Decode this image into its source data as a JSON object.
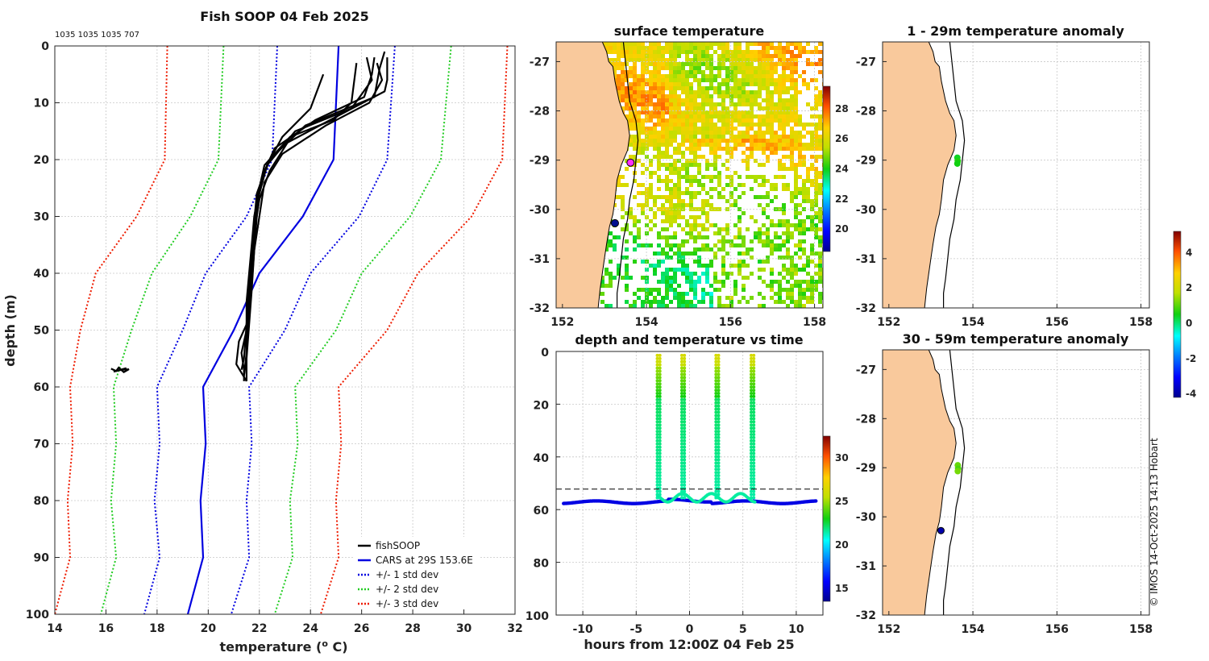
{
  "title": "Fish SOOP 04 Feb 2025",
  "counts_label": "1035 1035 1035 707",
  "copyright": "© IMOS 14-Oct-2025 14:13 Hobart",
  "chart_data": [
    {
      "id": "profile",
      "type": "line",
      "title": "Fish SOOP 04 Feb 2025",
      "xlabel": "temperature (",
      "xlabel_sup": "o",
      "xlabel_tail": " C)",
      "ylabel": "depth (m)",
      "xlim": [
        14,
        32
      ],
      "ylim": [
        0,
        100
      ],
      "y_reversed": true,
      "xticks": [
        14,
        16,
        18,
        20,
        22,
        24,
        26,
        28,
        30,
        32
      ],
      "yticks": [
        0,
        10,
        20,
        30,
        40,
        50,
        60,
        70,
        80,
        90,
        100
      ],
      "legend": [
        {
          "label": "fishSOOP",
          "color": "#000000",
          "style": "solid"
        },
        {
          "label": "CARS at 29S 153.6E",
          "color": "#0000e0",
          "style": "solid"
        },
        {
          "label": "+/- 1 std dev",
          "color": "#0000e0",
          "style": "dotted"
        },
        {
          "label": "+/- 2 std dev",
          "color": "#22cc22",
          "style": "dotted"
        },
        {
          "label": "+/- 3 std dev",
          "color": "#ee1c00",
          "style": "dotted"
        }
      ],
      "cars_depth": [
        0,
        20,
        30,
        40,
        50,
        60,
        70,
        80,
        90,
        100
      ],
      "cars_mean": [
        25.1,
        24.9,
        23.7,
        22.0,
        21.0,
        19.8,
        19.9,
        19.7,
        19.8,
        19.2
      ],
      "std_bands": [
        {
          "name": "-3",
          "color": "#ee1c00",
          "temps": [
            18.4,
            18.3,
            17.2,
            15.6,
            15.0,
            14.6,
            14.7,
            14.5,
            14.6,
            14.0
          ]
        },
        {
          "name": "-2",
          "color": "#22cc22",
          "temps": [
            20.6,
            20.4,
            19.3,
            17.8,
            17.0,
            16.3,
            16.4,
            16.2,
            16.4,
            15.8
          ]
        },
        {
          "name": "-1",
          "color": "#0000e0",
          "temps": [
            22.7,
            22.5,
            21.5,
            19.9,
            19.0,
            18.0,
            18.1,
            17.9,
            18.1,
            17.5
          ]
        },
        {
          "name": "+1",
          "color": "#0000e0",
          "temps": [
            27.3,
            27.0,
            25.9,
            24.0,
            23.0,
            21.6,
            21.7,
            21.5,
            21.6,
            20.9
          ]
        },
        {
          "name": "+2",
          "color": "#22cc22",
          "temps": [
            29.5,
            29.1,
            27.9,
            26.0,
            25.0,
            23.4,
            23.5,
            23.2,
            23.3,
            22.6
          ]
        },
        {
          "name": "+3",
          "color": "#ee1c00",
          "temps": [
            31.7,
            31.5,
            30.3,
            28.2,
            27.0,
            25.1,
            25.2,
            25.0,
            25.1,
            24.4
          ]
        }
      ],
      "fishsoop_profiles": [
        {
          "temp": [
            25.8,
            25.6,
            24.9,
            23.2,
            22.2,
            22.0,
            21.8,
            21.7,
            21.6,
            21.5,
            21.5,
            21.3,
            21.4,
            21.4
          ],
          "depth": [
            3,
            10,
            13,
            16,
            21,
            25,
            30,
            35,
            40,
            45,
            50,
            54,
            57,
            59
          ]
        },
        {
          "temp": [
            26.5,
            26.4,
            26.1,
            24.2,
            22.6,
            22.1,
            21.9,
            21.8,
            21.7,
            21.6,
            21.5,
            21.5,
            21.5
          ],
          "depth": [
            2,
            5,
            9,
            13,
            18,
            23,
            28,
            34,
            40,
            46,
            52,
            56,
            59
          ]
        },
        {
          "temp": [
            26.9,
            26.7,
            26.5,
            23.8,
            22.4,
            22.0,
            21.9,
            21.8,
            21.7,
            21.6,
            21.5,
            21.4
          ],
          "depth": [
            1,
            4,
            9,
            14,
            20,
            25,
            30,
            36,
            42,
            48,
            54,
            58
          ]
        },
        {
          "temp": [
            26.6,
            26.8,
            26.3,
            24.6,
            22.9,
            22.2,
            22.0,
            21.8,
            21.7,
            21.6,
            21.5,
            21.4
          ],
          "depth": [
            3,
            6,
            10,
            14,
            19,
            24,
            30,
            36,
            43,
            49,
            55,
            58
          ]
        },
        {
          "temp": [
            26.2,
            26.4,
            25.6,
            23.4,
            22.3,
            21.9,
            21.8,
            21.7,
            21.6,
            21.5,
            21.4,
            21.3
          ],
          "depth": [
            2,
            6,
            11,
            15,
            21,
            26,
            31,
            37,
            43,
            49,
            55,
            57
          ]
        },
        {
          "temp": [
            27.0,
            27.0,
            26.9,
            25.2,
            23.1,
            22.4,
            22.0,
            21.8,
            21.7,
            21.6,
            21.5
          ],
          "depth": [
            2,
            6,
            8,
            12,
            17,
            22,
            27,
            33,
            40,
            47,
            53
          ]
        },
        {
          "temp": [
            24.5,
            24.0,
            22.9,
            22.3,
            22.0,
            21.8,
            21.7,
            21.6,
            21.5,
            21.2,
            21.1,
            21.5
          ],
          "depth": [
            5,
            11,
            16,
            21,
            26,
            31,
            37,
            43,
            49,
            52,
            56,
            59
          ]
        }
      ],
      "outlier_cluster": {
        "temp": [
          16.2,
          16.4,
          16.5,
          16.7,
          16.9,
          16.6,
          16.3,
          16.8
        ],
        "depth": [
          56.8,
          57.2,
          56.6,
          57.4,
          56.9,
          57.0,
          57.3,
          56.7
        ]
      }
    },
    {
      "id": "sst_map",
      "type": "heatmap",
      "title": "surface temperature",
      "xlim": [
        151.85,
        158.2
      ],
      "ylim": [
        -32,
        -26.6
      ],
      "xticks": [
        152,
        154,
        156,
        158
      ],
      "yticks": [
        -27,
        -28,
        -29,
        -30,
        -31,
        -32
      ],
      "colorbar": {
        "min": 18.5,
        "max": 29.5,
        "ticks": [
          20,
          22,
          24,
          26,
          28
        ]
      },
      "markers": [
        {
          "lon": 153.62,
          "lat": -29.05,
          "color": "#ff30ff",
          "label": ""
        },
        {
          "lon": 153.25,
          "lat": -30.28,
          "color": "#001090",
          "label": ""
        }
      ]
    },
    {
      "id": "anomaly_1_29m",
      "type": "scatter",
      "title": "1 - 29m temperature anomaly",
      "xlim": [
        151.85,
        158.2
      ],
      "ylim": [
        -32,
        -26.6
      ],
      "xticks": [
        152,
        154,
        156,
        158
      ],
      "yticks": [
        -27,
        -28,
        -29,
        -30,
        -31,
        -32
      ],
      "points": [
        {
          "lon": 153.63,
          "lat": -28.95,
          "anomaly": 0.4
        },
        {
          "lon": 153.64,
          "lat": -29.02,
          "anomaly": 0.6
        },
        {
          "lon": 153.63,
          "lat": -29.07,
          "anomaly": 0.5
        }
      ]
    },
    {
      "id": "anomaly_30_59m",
      "type": "scatter",
      "title": "30 - 59m temperature anomaly",
      "xlim": [
        151.85,
        158.2
      ],
      "ylim": [
        -32,
        -26.6
      ],
      "xticks": [
        152,
        154,
        156,
        158
      ],
      "yticks": [
        -27,
        -28,
        -29,
        -30,
        -31,
        -32
      ],
      "points": [
        {
          "lon": 153.64,
          "lat": -28.95,
          "anomaly": 1.1
        },
        {
          "lon": 153.65,
          "lat": -29.02,
          "anomaly": 0.9
        },
        {
          "lon": 153.64,
          "lat": -29.07,
          "anomaly": 1.2
        },
        {
          "lon": 153.24,
          "lat": -30.28,
          "anomaly": -3.9
        }
      ]
    },
    {
      "id": "anomaly_colorbar",
      "type": "heatmap",
      "colorbar": {
        "min": -4.2,
        "max": 5.2,
        "ticks": [
          -4,
          -2,
          0,
          2,
          4
        ]
      }
    },
    {
      "id": "depth_time",
      "type": "scatter",
      "title": "depth and temperature vs time",
      "xlabel": "hours from 12:00Z 04 Feb 25",
      "xlim": [
        -12.5,
        12.5
      ],
      "ylim": [
        0,
        100
      ],
      "y_reversed": true,
      "xticks": [
        -10,
        -5,
        0,
        5,
        10
      ],
      "yticks": [
        0,
        20,
        40,
        60,
        80,
        100
      ],
      "colorbar": {
        "min": 13.5,
        "max": 32.5,
        "ticks": [
          15,
          20,
          25,
          30
        ]
      },
      "casts_hours": [
        -2.9,
        -0.6,
        2.6,
        5.9
      ],
      "bottom_line_depth": 57.2,
      "threshold_line_depth": 52.2
    }
  ]
}
